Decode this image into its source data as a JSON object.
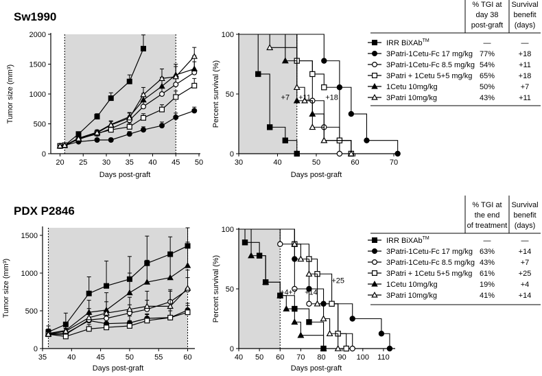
{
  "chart_data": [
    {
      "type": "line",
      "title": "Sw1990",
      "xlabel": "Days post-graft",
      "ylabel": "Tumor size (mm³)",
      "xlim": [
        18,
        50
      ],
      "ylim": [
        0,
        2000
      ],
      "xticks": [
        "20",
        "25",
        "30",
        "35",
        "40",
        "45",
        "50"
      ],
      "yticks": [
        "0",
        "500",
        "1000",
        "1500",
        "2000"
      ],
      "shaded_x": [
        21,
        45
      ],
      "series": [
        {
          "name": "IRR BiXAb™",
          "marker": "square-filled",
          "x": [
            20,
            21,
            24,
            28,
            31,
            35,
            38
          ],
          "y": [
            130,
            140,
            330,
            620,
            930,
            1210,
            1760
          ],
          "err": [
            15,
            15,
            30,
            50,
            90,
            110,
            230
          ]
        },
        {
          "name": "3Patri-1Cetu-Fc 17 mg/kg",
          "marker": "circle-filled",
          "x": [
            20,
            21,
            24,
            28,
            31,
            35,
            38,
            42,
            45,
            49
          ],
          "y": [
            130,
            140,
            200,
            230,
            230,
            330,
            400,
            470,
            610,
            720
          ],
          "err": [
            15,
            15,
            20,
            30,
            30,
            40,
            50,
            60,
            70,
            60
          ]
        },
        {
          "name": "3Patri-1Cetu-Fc 8.5 mg/kg",
          "marker": "circle-open",
          "x": [
            20,
            21,
            24,
            28,
            31,
            35,
            38,
            42,
            45,
            49
          ],
          "y": [
            130,
            140,
            250,
            330,
            420,
            560,
            790,
            1000,
            1160,
            1360
          ],
          "err": [
            15,
            15,
            25,
            40,
            50,
            70,
            90,
            110,
            140,
            180
          ]
        },
        {
          "name": "3Patri + 1Cetu 5+5 mg/kg",
          "marker": "square-open",
          "x": [
            20,
            21,
            24,
            28,
            31,
            35,
            38,
            42,
            45,
            49
          ],
          "y": [
            130,
            140,
            240,
            340,
            400,
            450,
            600,
            740,
            950,
            1140
          ],
          "err": [
            15,
            15,
            25,
            40,
            50,
            60,
            70,
            80,
            100,
            120
          ]
        },
        {
          "name": "1Cetu 10mg/kg",
          "marker": "triangle-filled",
          "x": [
            20,
            21,
            24,
            28,
            31,
            35,
            38,
            42,
            45,
            49
          ],
          "y": [
            130,
            140,
            260,
            360,
            490,
            620,
            900,
            1130,
            1320,
            1420
          ],
          "err": [
            15,
            15,
            30,
            40,
            60,
            70,
            110,
            150,
            180,
            220
          ]
        },
        {
          "name": "3Patri 10mg/kg",
          "marker": "triangle-open",
          "x": [
            20,
            21,
            24,
            28,
            31,
            35,
            38,
            42,
            45,
            49
          ],
          "y": [
            130,
            140,
            250,
            350,
            480,
            600,
            990,
            1260,
            1290,
            1630
          ],
          "err": [
            15,
            15,
            30,
            40,
            60,
            80,
            120,
            160,
            170,
            150
          ]
        }
      ]
    },
    {
      "type": "line",
      "title": "",
      "xlabel": "Days post-graft",
      "ylabel": "Percent survival (%)",
      "xlim": [
        30,
        70
      ],
      "ylim": [
        0,
        100
      ],
      "xticks": [
        "30",
        "40",
        "50",
        "60",
        "70"
      ],
      "yticks": [
        "0",
        "50",
        "100"
      ],
      "shaded_x": [
        30,
        45
      ],
      "annotations": [
        {
          "x": 42,
          "y": 45,
          "text": "+7"
        },
        {
          "x": 47,
          "y": 45,
          "text": "+11"
        },
        {
          "x": 54,
          "y": 45,
          "text": "+18"
        }
      ],
      "series": [
        {
          "name": "IRR BiXAb™",
          "marker": "square-filled",
          "steps": [
            [
              30,
              100
            ],
            [
              35,
              66.7
            ],
            [
              38,
              22.2
            ],
            [
              42,
              11.1
            ],
            [
              45,
              0
            ]
          ]
        },
        {
          "name": "3Patri-1Cetu-Fc 17 mg/kg",
          "marker": "circle-filled",
          "steps": [
            [
              30,
              100
            ],
            [
              52,
              77.8
            ],
            [
              56,
              55.6
            ],
            [
              59,
              33.3
            ],
            [
              63,
              11.1
            ],
            [
              71,
              0
            ]
          ]
        },
        {
          "name": "3Patri-1Cetu-Fc 8.5 mg/kg",
          "marker": "circle-open",
          "steps": [
            [
              30,
              100
            ],
            [
              45,
              77.8
            ],
            [
              49,
              44.4
            ],
            [
              52,
              22.2
            ],
            [
              56,
              0
            ]
          ]
        },
        {
          "name": "3Patri + 1Cetu 5+5 mg/kg",
          "marker": "square-open",
          "steps": [
            [
              30,
              100
            ],
            [
              45,
              77.8
            ],
            [
              49,
              66.7
            ],
            [
              52,
              55.6
            ],
            [
              56,
              11.1
            ],
            [
              59,
              0
            ]
          ]
        },
        {
          "name": "1Cetu 10mg/kg",
          "marker": "triangle-filled",
          "steps": [
            [
              30,
              100
            ],
            [
              42,
              77.8
            ],
            [
              45,
              44.4
            ],
            [
              49,
              33.3
            ],
            [
              52,
              11.1
            ],
            [
              59,
              0
            ]
          ]
        },
        {
          "name": "3Patri 10mg/kg",
          "marker": "triangle-open",
          "steps": [
            [
              30,
              100
            ],
            [
              38,
              88.9
            ],
            [
              45,
              55.6
            ],
            [
              47,
              44.4
            ],
            [
              49,
              22.2
            ],
            [
              52,
              11.1
            ],
            [
              59,
              0
            ]
          ]
        }
      ]
    },
    {
      "type": "line",
      "title": "PDX P2846",
      "xlabel": "Days post-graft",
      "ylabel": "Tumor size (mm³)",
      "xlim": [
        35,
        61
      ],
      "ylim": [
        0,
        1600
      ],
      "xticks": [
        "35",
        "40",
        "45",
        "50",
        "55",
        "60"
      ],
      "yticks": [
        "0",
        "500",
        "1000",
        "1500"
      ],
      "shaded_x": [
        36,
        60
      ],
      "series": [
        {
          "name": "IRR BiXAb™",
          "marker": "square-filled",
          "x": [
            36,
            39,
            43,
            46,
            50,
            53,
            57,
            60
          ],
          "y": [
            220,
            320,
            730,
            830,
            920,
            1130,
            1250,
            1360
          ],
          "err": [
            80,
            150,
            220,
            330,
            300,
            360,
            230,
            240
          ]
        },
        {
          "name": "3Patri-1Cetu-Fc 17 mg/kg",
          "marker": "circle-filled",
          "x": [
            36,
            39,
            43,
            46,
            50,
            53,
            57,
            60
          ],
          "y": [
            190,
            200,
            370,
            330,
            340,
            400,
            410,
            510
          ],
          "err": [
            60,
            70,
            80,
            100,
            90,
            60,
            120,
            90
          ]
        },
        {
          "name": "3Patri-1Cetu-Fc 8.5 mg/kg",
          "marker": "circle-open",
          "x": [
            36,
            39,
            43,
            46,
            50,
            53,
            57,
            60
          ],
          "y": [
            190,
            190,
            380,
            400,
            470,
            520,
            620,
            780
          ],
          "err": [
            60,
            70,
            80,
            100,
            110,
            120,
            140,
            160
          ]
        },
        {
          "name": "3Patri + 1Cetu 5+5 mg/kg",
          "marker": "square-open",
          "x": [
            36,
            39,
            43,
            46,
            50,
            53,
            57,
            60
          ],
          "y": [
            190,
            160,
            260,
            280,
            300,
            370,
            410,
            480
          ],
          "err": [
            50,
            50,
            60,
            70,
            70,
            80,
            90,
            90
          ]
        },
        {
          "name": "1Cetu 10mg/kg",
          "marker": "triangle-filled",
          "x": [
            36,
            39,
            43,
            46,
            50,
            53,
            57,
            60
          ],
          "y": [
            200,
            240,
            480,
            510,
            740,
            880,
            940,
            1100
          ],
          "err": [
            60,
            110,
            160,
            230,
            260,
            290,
            300,
            310
          ]
        },
        {
          "name": "3Patri 10mg/kg",
          "marker": "triangle-open",
          "x": [
            36,
            39,
            43,
            46,
            50,
            53,
            57,
            60
          ],
          "y": [
            190,
            230,
            410,
            470,
            520,
            560,
            560,
            800
          ],
          "err": [
            60,
            90,
            120,
            150,
            160,
            200,
            220,
            240
          ]
        }
      ]
    },
    {
      "type": "line",
      "title": "",
      "xlabel": "Days post-graft",
      "ylabel": "Percent survival (%)",
      "xlim": [
        40,
        115
      ],
      "ylim": [
        0,
        100
      ],
      "xticks": [
        "40",
        "50",
        "60",
        "70",
        "80",
        "90",
        "100",
        "110"
      ],
      "yticks": [
        "0",
        "50",
        "100"
      ],
      "shaded_x": [
        40,
        60
      ],
      "annotations": [
        {
          "x": 62,
          "y": 45,
          "text": "+4"
        },
        {
          "x": 66,
          "y": 45,
          "text": "+7"
        },
        {
          "x": 75,
          "y": 45,
          "text": "+14"
        },
        {
          "x": 88,
          "y": 55,
          "text": "+25"
        }
      ],
      "series": [
        {
          "name": "IRR BiXAb™",
          "marker": "square-filled",
          "steps": [
            [
              40,
              100
            ],
            [
              43,
              88.9
            ],
            [
              50,
              77.8
            ],
            [
              53,
              55.6
            ],
            [
              60,
              44.4
            ],
            [
              67,
              33.3
            ],
            [
              74,
              22.2
            ],
            [
              81,
              0
            ]
          ]
        },
        {
          "name": "3Patri-1Cetu-Fc 17 mg/kg",
          "marker": "circle-filled",
          "steps": [
            [
              40,
              100
            ],
            [
              67,
              75
            ],
            [
              74,
              50
            ],
            [
              81,
              37.5
            ],
            [
              95,
              25
            ],
            [
              109,
              12.5
            ],
            [
              113,
              0
            ]
          ]
        },
        {
          "name": "3Patri-1Cetu-Fc 8.5 mg/kg",
          "marker": "circle-open",
          "steps": [
            [
              40,
              100
            ],
            [
              60,
              87.5
            ],
            [
              67,
              50
            ],
            [
              74,
              37.5
            ],
            [
              88,
              12.5
            ],
            [
              95,
              0
            ]
          ]
        },
        {
          "name": "3Patri + 1Cetu 5+5 mg/kg",
          "marker": "square-open",
          "steps": [
            [
              40,
              100
            ],
            [
              67,
              87.5
            ],
            [
              74,
              75
            ],
            [
              78,
              62.5
            ],
            [
              85,
              37.5
            ],
            [
              88,
              12.5
            ],
            [
              92,
              0
            ]
          ]
        },
        {
          "name": "1Cetu 10mg/kg",
          "marker": "triangle-filled",
          "steps": [
            [
              40,
              100
            ],
            [
              46,
              77.8
            ],
            [
              53,
              55.6
            ],
            [
              60,
              44.4
            ],
            [
              63,
              33.3
            ],
            [
              67,
              22.2
            ],
            [
              70,
              11.1
            ],
            [
              81,
              0
            ]
          ]
        },
        {
          "name": "3Patri 10mg/kg",
          "marker": "triangle-open",
          "steps": [
            [
              40,
              100
            ],
            [
              67,
              87.5
            ],
            [
              70,
              75
            ],
            [
              74,
              62.5
            ],
            [
              78,
              37.5
            ],
            [
              81,
              25
            ],
            [
              84,
              12.5
            ],
            [
              88,
              0
            ]
          ]
        }
      ]
    }
  ],
  "tables": [
    {
      "header_tgi": [
        "% TGI at",
        "day 38",
        "post-graft"
      ],
      "header_surv": [
        "Survival",
        "benefit",
        "(days)"
      ],
      "rows": [
        {
          "name": "IRR BiXAb",
          "sup": "TM",
          "tgi": "—",
          "surv": "—"
        },
        {
          "name": "3Patri-1Cetu-Fc 17 mg/kg",
          "tgi": "77%",
          "surv": "+18"
        },
        {
          "name": "3Patri-1Cetu-Fc 8.5 mg/kg",
          "tgi": "54%",
          "surv": "+11"
        },
        {
          "name": "3Patri + 1Cetu  5+5 mg/kg",
          "tgi": "65%",
          "surv": "+18"
        },
        {
          "name": "1Cetu 10mg/kg",
          "tgi": "50%",
          "surv": "+7"
        },
        {
          "name": "3Patri 10mg/kg",
          "tgi": "43%",
          "surv": "+11"
        }
      ]
    },
    {
      "header_tgi": [
        "% TGI at",
        "the end",
        "of treatment"
      ],
      "header_surv": [
        "Survival",
        "benefit",
        "(days)"
      ],
      "rows": [
        {
          "name": "IRR BiXAb",
          "sup": "TM",
          "tgi": "—",
          "surv": "—"
        },
        {
          "name": "3Patri-1Cetu-Fc 17 mg/kg",
          "tgi": "63%",
          "surv": "+14"
        },
        {
          "name": "3Patri-1Cetu-Fc 8.5 mg/kg",
          "tgi": "43%",
          "surv": "+7"
        },
        {
          "name": "3Patri + 1Cetu  5+5 mg/kg",
          "tgi": "61%",
          "surv": "+25"
        },
        {
          "name": "1Cetu 10mg/kg",
          "tgi": "19%",
          "surv": "+4"
        },
        {
          "name": "3Patri 10mg/kg",
          "tgi": "41%",
          "surv": "+14"
        }
      ]
    }
  ]
}
